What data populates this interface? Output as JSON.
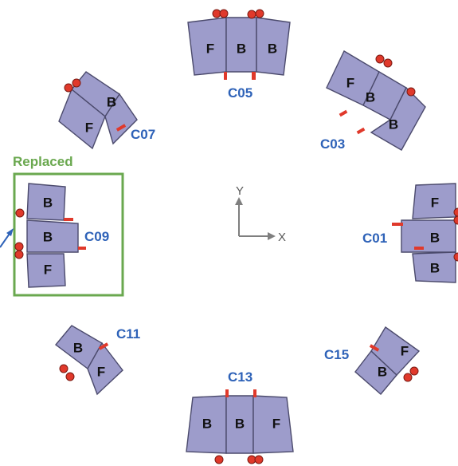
{
  "diagram": {
    "axes": {
      "y_label": "Y",
      "x_label": "X"
    },
    "replaced_label": "Replaced",
    "chambers": [
      {
        "id": "C05",
        "label": "C05",
        "modules": [
          "F",
          "B",
          "B"
        ]
      },
      {
        "id": "C03",
        "label": "C03",
        "modules": [
          "F",
          "B",
          "B"
        ]
      },
      {
        "id": "C01",
        "label": "C01",
        "modules": [
          "F",
          "B",
          "B"
        ]
      },
      {
        "id": "C15",
        "label": "C15",
        "modules": [
          "F",
          "B"
        ]
      },
      {
        "id": "C13",
        "label": "C13",
        "modules": [
          "B",
          "B",
          "F"
        ]
      },
      {
        "id": "C11",
        "label": "C11",
        "modules": [
          "B",
          "F"
        ]
      },
      {
        "id": "C09",
        "label": "C09",
        "modules": [
          "B",
          "B",
          "F"
        ]
      },
      {
        "id": "C07",
        "label": "C07",
        "modules": [
          "B",
          "F"
        ]
      }
    ],
    "colors": {
      "module": "#9d9ccb",
      "label": "#2e62b8",
      "marker": "#e0392b",
      "replaced_box": "#6aa84f"
    }
  }
}
